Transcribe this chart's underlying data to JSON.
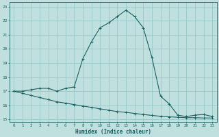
{
  "title": "",
  "xlabel": "Humidex (Indice chaleur)",
  "ylabel": "",
  "bg_color": "#c0e0e0",
  "grid_color": "#98c8c8",
  "line_color": "#1a5f5f",
  "xlim": [
    -0.5,
    23.5
  ],
  "ylim": [
    14.8,
    23.3
  ],
  "xticks": [
    0,
    1,
    2,
    3,
    4,
    5,
    6,
    7,
    8,
    9,
    10,
    11,
    12,
    13,
    14,
    15,
    16,
    17,
    18,
    19,
    20,
    21,
    22,
    23
  ],
  "yticks": [
    15,
    16,
    17,
    18,
    19,
    20,
    21,
    22,
    23
  ],
  "curve1_x": [
    0,
    1,
    2,
    3,
    4,
    5,
    6,
    7,
    8,
    9,
    10,
    11,
    12,
    13,
    14,
    15,
    16,
    17,
    18,
    19,
    20,
    21,
    22,
    23
  ],
  "curve1_y": [
    17.0,
    17.0,
    17.1,
    17.2,
    17.2,
    17.0,
    17.2,
    17.3,
    19.3,
    20.5,
    21.5,
    21.85,
    22.3,
    22.75,
    22.3,
    21.5,
    19.4,
    16.65,
    16.1,
    15.3,
    15.2,
    15.3,
    15.35,
    15.2
  ],
  "curve2_x": [
    0,
    1,
    2,
    3,
    4,
    5,
    6,
    7,
    8,
    9,
    10,
    11,
    12,
    13,
    14,
    15,
    16,
    17,
    18,
    19,
    20,
    21,
    22,
    23
  ],
  "curve2_y": [
    17.0,
    16.85,
    16.7,
    16.55,
    16.4,
    16.25,
    16.15,
    16.05,
    15.95,
    15.85,
    15.75,
    15.65,
    15.55,
    15.5,
    15.42,
    15.35,
    15.28,
    15.22,
    15.18,
    15.15,
    15.12,
    15.12,
    15.1,
    15.1
  ]
}
